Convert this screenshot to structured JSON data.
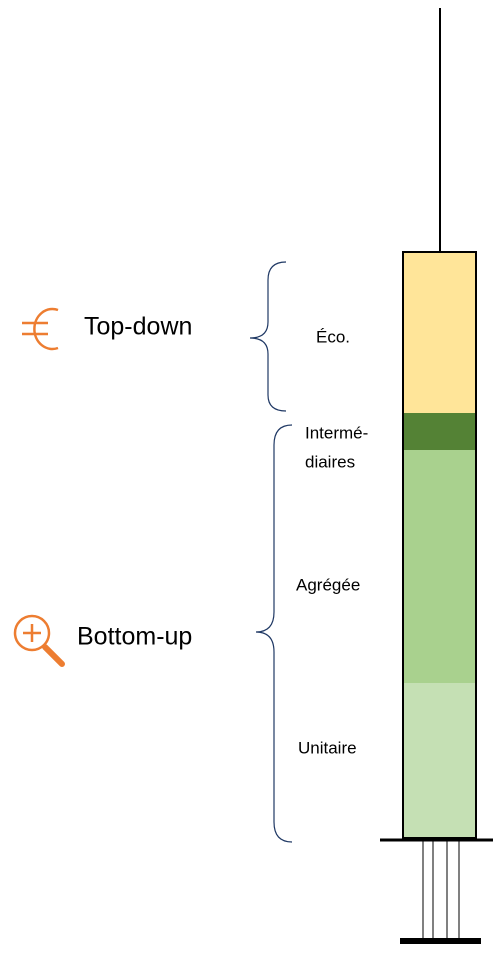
{
  "approaches": {
    "top_down": "Top-down",
    "bottom_up": "Bottom-up"
  },
  "segments": {
    "eco": "Éco.",
    "intermediaires": [
      "Intermé-",
      "diaires"
    ],
    "agregee": "Agrégée",
    "unitaire": "Unitaire"
  }
}
